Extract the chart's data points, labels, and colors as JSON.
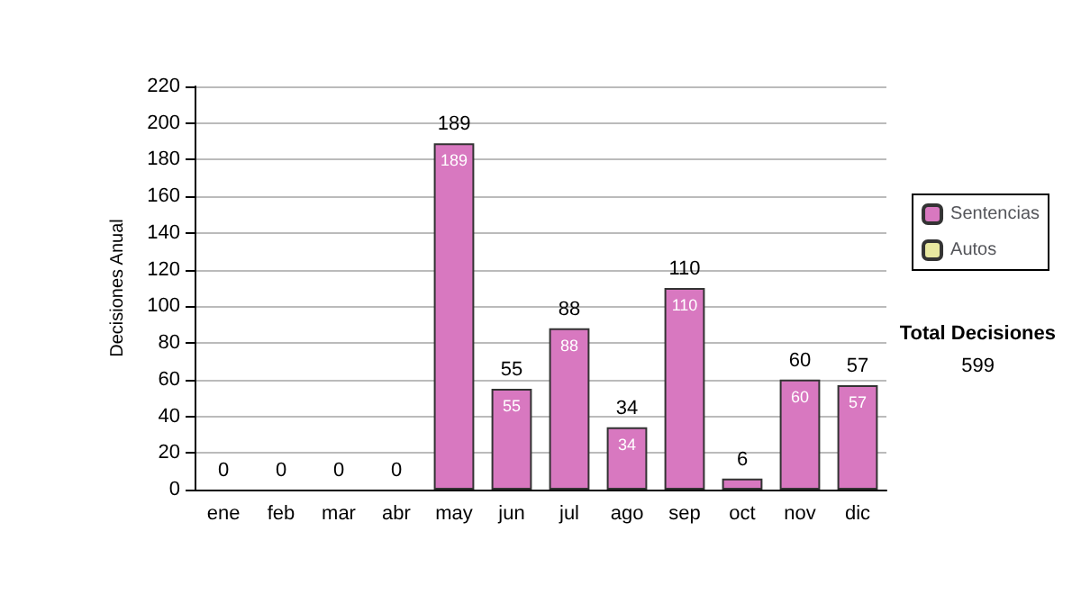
{
  "chart_data": {
    "type": "bar",
    "stacked": true,
    "ylabel": "Decisiones Anual",
    "categories": [
      "ene",
      "feb",
      "mar",
      "abr",
      "may",
      "jun",
      "jul",
      "ago",
      "sep",
      "oct",
      "nov",
      "dic"
    ],
    "series": [
      {
        "name": "Sentencias",
        "color": "#d878c0",
        "values": [
          0,
          0,
          0,
          0,
          189,
          55,
          88,
          34,
          110,
          6,
          60,
          57
        ],
        "value_labels": [
          null,
          null,
          null,
          null,
          "189",
          "55",
          "88",
          "34",
          "110",
          null,
          "60",
          "57"
        ]
      },
      {
        "name": "Autos",
        "color": "#e8e8a0",
        "values": [
          0,
          0,
          0,
          0,
          0,
          0,
          0,
          0,
          0,
          0,
          0,
          0
        ]
      }
    ],
    "totals": [
      "0",
      "0",
      "0",
      "0",
      "189",
      "55",
      "88",
      "34",
      "110",
      "6",
      "60",
      "57"
    ],
    "ylim": [
      0,
      220
    ],
    "yticks": [
      0,
      20,
      40,
      60,
      80,
      100,
      120,
      140,
      160,
      180,
      200,
      220
    ],
    "grid": "y",
    "legend": "right",
    "annotations": [
      "Total Decisiones",
      "599"
    ]
  }
}
